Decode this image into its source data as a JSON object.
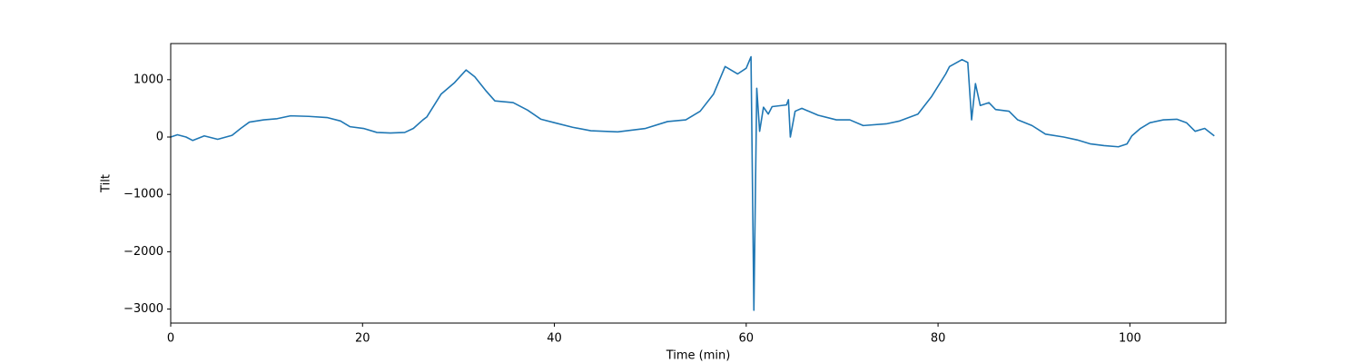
{
  "chart_data": {
    "type": "line",
    "x_label": "Time (min)",
    "y_label": "Tilt",
    "xlim": [
      0,
      110
    ],
    "ylim": [
      -3244,
      1630
    ],
    "xticks": [
      0,
      20,
      40,
      60,
      80,
      100
    ],
    "yticks": [
      {
        "value": -3000,
        "label": "−3000"
      },
      {
        "value": -2000,
        "label": "−2000"
      },
      {
        "value": -1000,
        "label": "−1000"
      },
      0,
      1000
    ],
    "grid": false,
    "series": [
      {
        "color": "#1f77b4",
        "x": [
          0,
          0.7,
          1.6,
          2.3,
          3.5,
          4.9,
          6.4,
          7.3,
          8.2,
          9.7,
          11.1,
          12.5,
          14.4,
          16.3,
          17.7,
          18.7,
          20.1,
          21.5,
          22.9,
          24.4,
          25.3,
          26.3,
          26.7,
          28.2,
          29.6,
          30.8,
          31.7,
          32.9,
          33.8,
          35.7,
          37.2,
          38.6,
          40,
          41.9,
          43.8,
          46.6,
          49.5,
          51.8,
          53.7,
          55.2,
          56.6,
          57.8,
          59.1,
          60,
          60.5,
          60.8,
          61.1,
          61.4,
          61.8,
          62.3,
          62.7,
          64.2,
          64.4,
          64.6,
          65.1,
          65.8,
          67.5,
          69.4,
          70.8,
          72.2,
          74.6,
          76,
          77.9,
          79.3,
          80.8,
          81.2,
          82.5,
          83.1,
          83.5,
          83.9,
          84.4,
          85.3,
          86,
          87.4,
          88.3,
          89.8,
          91.2,
          93.1,
          94.5,
          95.9,
          97.3,
          98.8,
          99.7,
          100.2,
          101.1,
          102.1,
          103.5,
          104.9,
          105.9,
          106.8,
          107.8,
          108.8
        ],
        "values": [
          0,
          40,
          0,
          -60,
          20,
          -40,
          30,
          150,
          260,
          300,
          320,
          370,
          360,
          340,
          280,
          180,
          150,
          80,
          70,
          80,
          150,
          300,
          350,
          750,
          950,
          1170,
          1050,
          800,
          630,
          600,
          470,
          310,
          250,
          170,
          110,
          90,
          150,
          270,
          300,
          450,
          750,
          1230,
          1100,
          1200,
          1400,
          -3020,
          850,
          100,
          520,
          400,
          530,
          560,
          650,
          0,
          450,
          500,
          380,
          300,
          300,
          200,
          230,
          280,
          400,
          700,
          1100,
          1230,
          1350,
          1300,
          300,
          930,
          550,
          600,
          480,
          450,
          300,
          200,
          50,
          0,
          -50,
          -120,
          -150,
          -170,
          -120,
          20,
          150,
          250,
          300,
          310,
          250,
          100,
          150,
          20
        ]
      }
    ]
  }
}
